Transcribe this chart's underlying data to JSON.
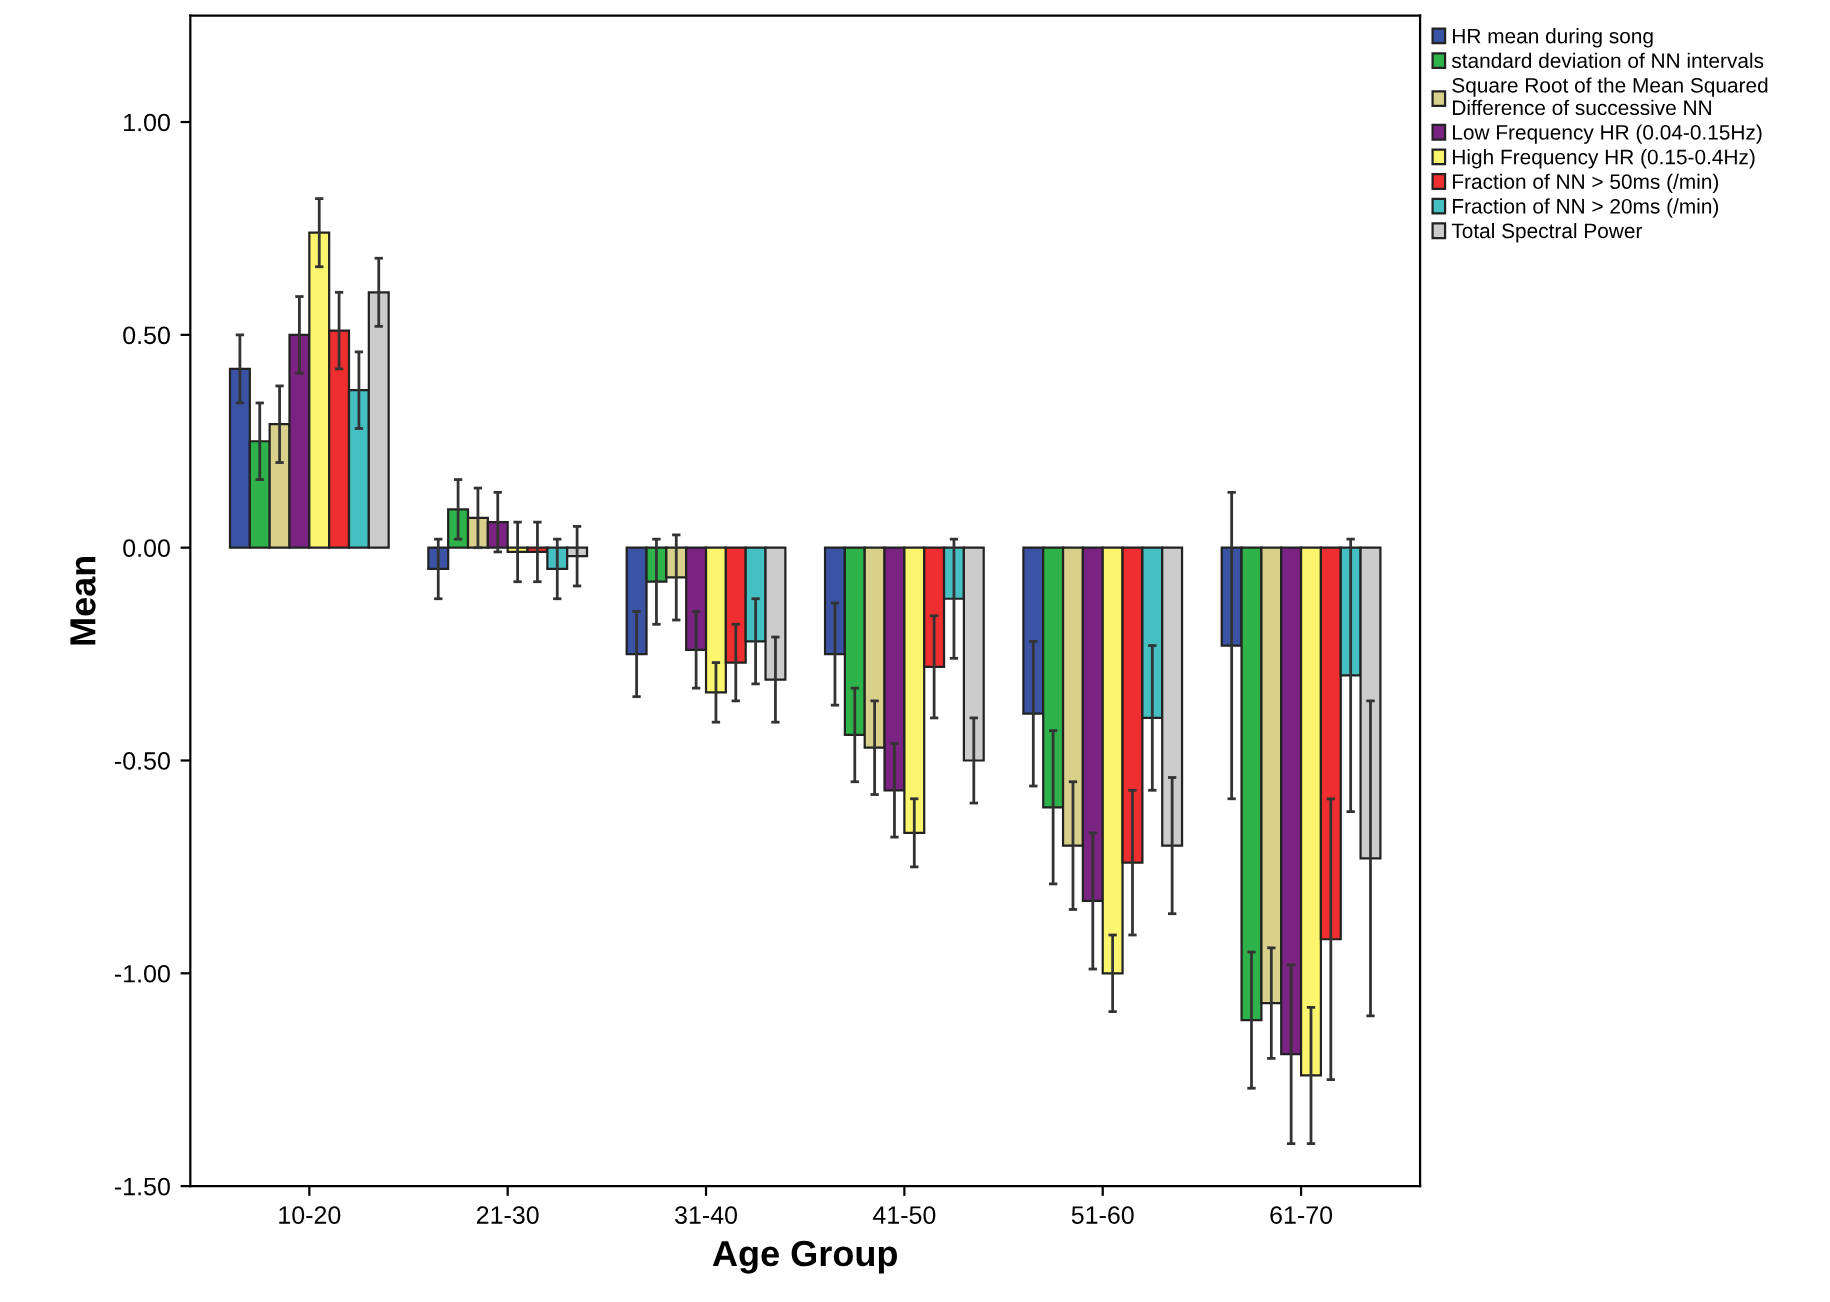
{
  "chart_data": {
    "type": "bar",
    "xlabel": "Age Group",
    "ylabel": "Mean",
    "categories": [
      "10-20",
      "21-30",
      "31-40",
      "41-50",
      "51-60",
      "61-70"
    ],
    "ylim": [
      -1.5,
      1.25
    ],
    "yticks": [
      {
        "value": -1.5,
        "label": "-1.50"
      },
      {
        "value": -1.0,
        "label": "-1.00"
      },
      {
        "value": -0.5,
        "label": "-0.50"
      },
      {
        "value": 0,
        "label": "0.00"
      },
      {
        "value": 0.5,
        "label": "0.50"
      },
      {
        "value": 1.0,
        "label": "1.00"
      }
    ],
    "grid": false,
    "legend": "right",
    "series": [
      {
        "name": "HR mean during song",
        "color": "#3b53a4",
        "values": [
          0.42,
          -0.05,
          -0.25,
          -0.25,
          -0.39,
          -0.23
        ],
        "errors": [
          0.08,
          0.07,
          0.1,
          0.12,
          0.17,
          0.36
        ]
      },
      {
        "name": "standard deviation of NN intervals",
        "color": "#2db34a",
        "values": [
          0.25,
          0.09,
          -0.08,
          -0.44,
          -0.61,
          -1.11
        ],
        "errors": [
          0.09,
          0.07,
          0.1,
          0.11,
          0.18,
          0.16
        ]
      },
      {
        "name": "Square Root of the Mean Squared\nDifference of successive NN",
        "color": "#d9d08c",
        "values": [
          0.29,
          0.07,
          -0.07,
          -0.47,
          -0.7,
          -1.07
        ],
        "errors": [
          0.09,
          0.07,
          0.1,
          0.11,
          0.15,
          0.13
        ]
      },
      {
        "name": "Low Frequency HR (0.04-0.15Hz)",
        "color": "#7b2382",
        "values": [
          0.5,
          0.06,
          -0.24,
          -0.57,
          -0.83,
          -1.19
        ],
        "errors": [
          0.09,
          0.07,
          0.09,
          0.11,
          0.16,
          0.21
        ]
      },
      {
        "name": "High Frequency HR (0.15-0.4Hz)",
        "color": "#fbf66d",
        "values": [
          0.74,
          -0.01,
          -0.34,
          -0.67,
          -1.0,
          -1.24
        ],
        "errors": [
          0.08,
          0.07,
          0.07,
          0.08,
          0.09,
          0.16
        ]
      },
      {
        "name": "Fraction of NN > 50ms (/min)",
        "color": "#ee2e2f",
        "values": [
          0.51,
          -0.01,
          -0.27,
          -0.28,
          -0.74,
          -0.92
        ],
        "errors": [
          0.09,
          0.07,
          0.09,
          0.12,
          0.17,
          0.33
        ]
      },
      {
        "name": "Fraction of NN > 20ms (/min)",
        "color": "#44bfc2",
        "values": [
          0.37,
          -0.05,
          -0.22,
          -0.12,
          -0.4,
          -0.3
        ],
        "errors": [
          0.09,
          0.07,
          0.1,
          0.14,
          0.17,
          0.32
        ]
      },
      {
        "name": "Total Spectral Power",
        "color": "#cccccc",
        "values": [
          0.6,
          -0.02,
          -0.31,
          -0.5,
          -0.7,
          -0.73
        ],
        "errors": [
          0.08,
          0.07,
          0.1,
          0.1,
          0.16,
          0.37
        ]
      }
    ]
  }
}
